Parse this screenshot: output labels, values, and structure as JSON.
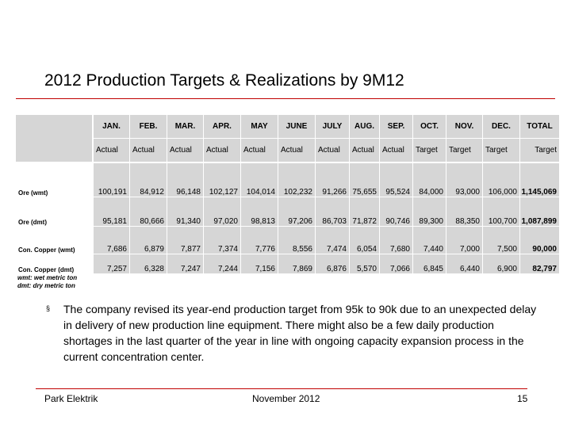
{
  "header": {
    "title": "2012 Production Targets & Realizations by 9M12"
  },
  "table": {
    "columns": [
      "JAN.",
      "FEB.",
      "MAR.",
      "APR.",
      "MAY",
      "JUNE",
      "JULY",
      "AUG.",
      "SEP.",
      "OCT.",
      "NOV.",
      "DEC.",
      "TOTAL"
    ],
    "subheader": [
      "Actual",
      "Actual",
      "Actual",
      "Actual",
      "Actual",
      "Actual",
      "Actual",
      "Actual",
      "Actual",
      "Target",
      "Target",
      "Target",
      "Target"
    ],
    "rows": [
      {
        "label": "Ore (wmt)",
        "cells": [
          "100,191",
          "84,912",
          "96,148",
          "102,127",
          "104,014",
          "102,232",
          "91,266",
          "75,655",
          "95,524",
          "84,000",
          "93,000",
          "106,000",
          "1,145,069"
        ]
      },
      {
        "label": "Ore (dmt)",
        "cells": [
          "95,181",
          "80,666",
          "91,340",
          "97,020",
          "98,813",
          "97,206",
          "86,703",
          "71,872",
          "90,746",
          "89,300",
          "88,350",
          "100,700",
          "1,087,899"
        ]
      },
      {
        "label": "Con. Copper (wmt)",
        "cells": [
          "7,686",
          "6,879",
          "7,877",
          "7,374",
          "7,776",
          "8,556",
          "7,474",
          "6,054",
          "7,680",
          "7,440",
          "7,000",
          "7,500",
          "90,000"
        ]
      },
      {
        "label": "Con. Copper (dmt)",
        "cells": [
          "7,257",
          "6,328",
          "7,247",
          "7,244",
          "7,156",
          "7,869",
          "6,876",
          "5,570",
          "7,066",
          "6,845",
          "6,440",
          "6,900",
          "82,797"
        ]
      }
    ],
    "notes": [
      "wmt: wet metric ton",
      "dmt: dry metric ton"
    ]
  },
  "body": {
    "bullet": "The company revised its year-end production target from 95k to 90k due to an unexpected delay in delivery of new production line equipment. There might also be a few daily production shortages in the last quarter of the year in line with ongoing capacity expansion process in the current concentration center."
  },
  "footer": {
    "left": "Park Elektrik",
    "center": "November 2012",
    "page": "15"
  }
}
